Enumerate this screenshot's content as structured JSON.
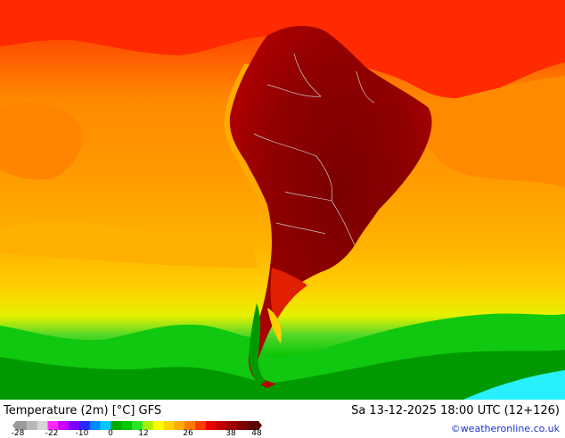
{
  "map": {
    "title": "Temperature (2m) [°C] GFS",
    "datetime": "Sa 13-12-2025 18:00 UTC (12+126)",
    "credit": "©weatheronline.co.uk"
  },
  "legend": {
    "ticks": [
      "-28",
      "-22",
      "-10",
      "0",
      "12",
      "26",
      "38",
      "48"
    ],
    "colors": [
      "#9a9a9a",
      "#b8b8b8",
      "#d6d6d6",
      "#ff28ff",
      "#c800ff",
      "#7a00ff",
      "#2828ff",
      "#0088ff",
      "#00c8ff",
      "#00aa00",
      "#00c800",
      "#28e628",
      "#a8f000",
      "#ffff00",
      "#ffd200",
      "#ffaa00",
      "#ff7800",
      "#ff3c00",
      "#e60000",
      "#c00000",
      "#a00000",
      "#800000",
      "#5a0000"
    ]
  },
  "colors": {
    "ocean_warm": "#ff9a00",
    "ocean_hot": "#ff2600",
    "land_hot": "#8a0000",
    "cold_band": "#00c800",
    "ice": "#00ffff"
  }
}
